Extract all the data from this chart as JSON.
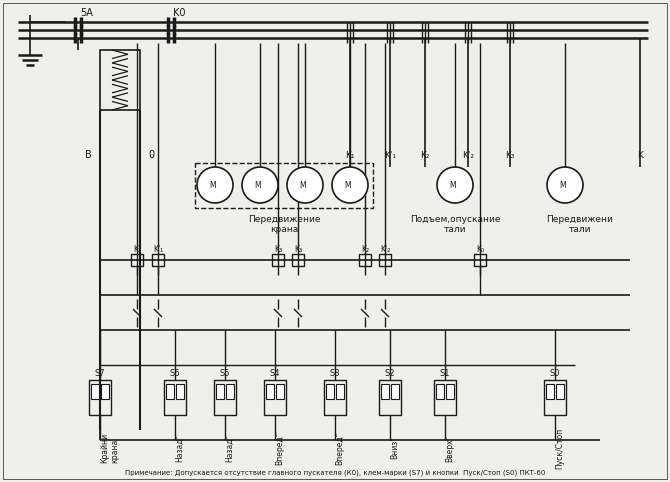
{
  "bg_color": "#efefeb",
  "line_color": "#1a1a1a",
  "note_text": "Примечание: Допускается отсутствие главного пускателя (К0), клем-марки (S7) и кнопки  Пуск/Стоп (S0) ПКТ-60",
  "label_SA": "5A",
  "label_K0": "K0",
  "label_B": "B",
  "label_O": "0",
  "section1": "Передвижение\nкрана",
  "section2": "Подъем,опускание\nтали",
  "section3": "Передвижени\nтали",
  "btn_labels": [
    "Крайни\nкрана",
    "Назад\"",
    "Назад\"",
    "Вперед\"",
    "Вперед\"",
    "Вниз\"",
    "Вверх\"",
    "Пуск/Стоп"
  ],
  "switch_labels": [
    "S7",
    "S6",
    "S5",
    "S4",
    "S3",
    "S2",
    "S1",
    "S0"
  ],
  "motor_labels": [
    "м",
    "м",
    "м",
    "м",
    "м",
    "м"
  ]
}
